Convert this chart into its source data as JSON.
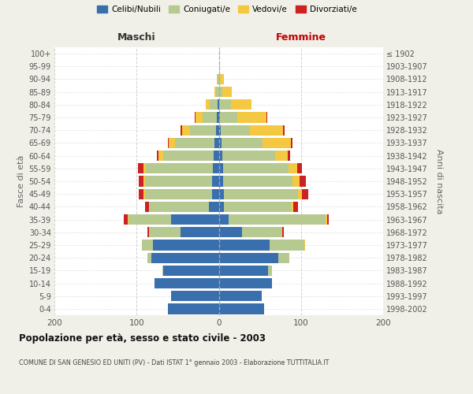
{
  "age_groups": [
    "0-4",
    "5-9",
    "10-14",
    "15-19",
    "20-24",
    "25-29",
    "30-34",
    "35-39",
    "40-44",
    "45-49",
    "50-54",
    "55-59",
    "60-64",
    "65-69",
    "70-74",
    "75-79",
    "80-84",
    "85-89",
    "90-94",
    "95-99",
    "100+"
  ],
  "birth_years": [
    "1998-2002",
    "1993-1997",
    "1988-1992",
    "1983-1987",
    "1978-1982",
    "1973-1977",
    "1968-1972",
    "1963-1967",
    "1958-1962",
    "1953-1957",
    "1948-1952",
    "1943-1947",
    "1938-1942",
    "1933-1937",
    "1928-1932",
    "1923-1927",
    "1918-1922",
    "1913-1917",
    "1908-1912",
    "1903-1907",
    "≤ 1902"
  ],
  "maschi_celibe": [
    62,
    58,
    78,
    68,
    82,
    80,
    47,
    58,
    12,
    8,
    8,
    7,
    6,
    5,
    3,
    2,
    1,
    0,
    0,
    0,
    0
  ],
  "maschi_coniugato": [
    0,
    0,
    0,
    1,
    5,
    14,
    38,
    52,
    72,
    82,
    82,
    82,
    62,
    48,
    32,
    18,
    10,
    3,
    1,
    0,
    0
  ],
  "maschi_vedovo": [
    0,
    0,
    0,
    0,
    0,
    0,
    0,
    1,
    1,
    2,
    2,
    3,
    5,
    8,
    10,
    8,
    5,
    2,
    1,
    0,
    0
  ],
  "maschi_divorziato": [
    0,
    0,
    0,
    0,
    0,
    0,
    2,
    5,
    5,
    5,
    5,
    6,
    2,
    1,
    2,
    1,
    0,
    0,
    0,
    0,
    0
  ],
  "femmine_celibe": [
    55,
    52,
    65,
    60,
    72,
    62,
    28,
    12,
    6,
    6,
    5,
    5,
    4,
    3,
    2,
    1,
    0,
    0,
    0,
    0,
    0
  ],
  "femmine_coniugata": [
    0,
    0,
    0,
    5,
    14,
    42,
    48,
    118,
    82,
    90,
    85,
    80,
    65,
    50,
    36,
    22,
    15,
    4,
    1,
    0,
    0
  ],
  "femmine_vedova": [
    0,
    0,
    0,
    0,
    0,
    1,
    1,
    2,
    3,
    5,
    8,
    10,
    15,
    35,
    40,
    35,
    25,
    12,
    5,
    1,
    0
  ],
  "femmine_divorziata": [
    0,
    0,
    0,
    0,
    0,
    0,
    2,
    2,
    5,
    8,
    8,
    6,
    3,
    2,
    2,
    1,
    0,
    0,
    0,
    0,
    0
  ],
  "colors": {
    "celibe": "#3a6fad",
    "coniugato": "#b5c990",
    "vedovo": "#f5c842",
    "divorziato": "#cc2222"
  },
  "xlim": 200,
  "title": "Popolazione per età, sesso e stato civile - 2003",
  "subtitle": "COMUNE DI SAN GENESIO ED UNITI (PV) - Dati ISTAT 1° gennaio 2003 - Elaborazione TUTTITALIA.IT",
  "xlabel_left": "Maschi",
  "xlabel_right": "Femmine",
  "ylabel_left": "Fasce di età",
  "ylabel_right": "Anni di nascita",
  "legend_labels": [
    "Celibi/Nubili",
    "Coniugati/e",
    "Vedovi/e",
    "Divorziati/e"
  ],
  "bg_color": "#f0f0e8",
  "plot_bg_color": "#ffffff"
}
